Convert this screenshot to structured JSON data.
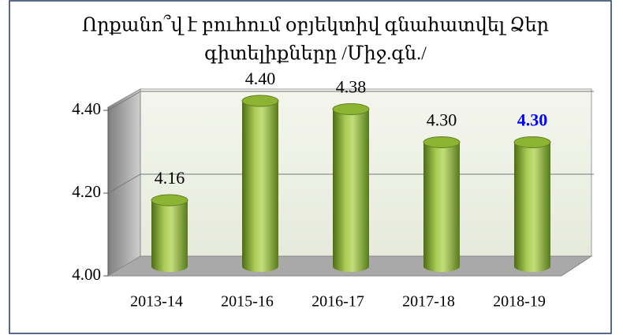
{
  "chart_data": {
    "type": "bar3d",
    "title": [
      "Որքանո՞վ է բուհում օբյեկտիվ գնահատվել Ձեր",
      "գիտելիքները  /Միջ.գն./"
    ],
    "categories": [
      "2013-14",
      "2015-16",
      "2016-17",
      "2017-18",
      "2018-19"
    ],
    "values": [
      4.16,
      4.4,
      4.38,
      4.3,
      4.3
    ],
    "value_labels": [
      "4.16",
      "4.40",
      "4.38",
      "4.30",
      "4.30"
    ],
    "value_label_colors": [
      "#000000",
      "#000000",
      "#000000",
      "#000000",
      "#0000ff"
    ],
    "color": "#8db332",
    "ylim": [
      4.0,
      4.4
    ],
    "yticks": [
      {
        "value": 4.0,
        "label": "4.00"
      },
      {
        "value": 4.2,
        "label": "4.20"
      },
      {
        "value": 4.4,
        "label": "4.40"
      }
    ],
    "grid": true
  }
}
